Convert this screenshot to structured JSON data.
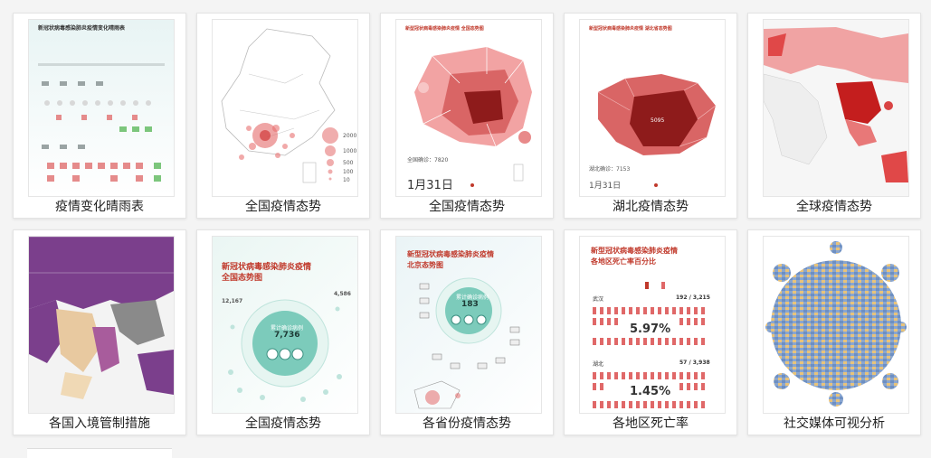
{
  "cards": [
    {
      "caption": "疫情变化晴雨表",
      "thumb": {
        "title": "新冠状病毒感染肺炎疫情变化晴雨表"
      }
    },
    {
      "caption": "全国疫情态势",
      "thumb": {
        "legend": [
          "2000",
          "1000",
          "500",
          "100",
          "10"
        ]
      }
    },
    {
      "caption": "全国疫情态势",
      "thumb": {
        "title": "新型冠状病毒感染肺炎疫情 全国态势图",
        "total": "全国确诊：7820",
        "date": "1月31日"
      }
    },
    {
      "caption": "湖北疫情态势",
      "thumb": {
        "title": "新型冠状病毒感染肺炎疫情 湖北省态势图",
        "total": "湖北确诊：7153",
        "date": "1月31日",
        "center": "5095"
      }
    },
    {
      "caption": "全球疫情态势",
      "thumb": {}
    },
    {
      "caption": "各国入境管制措施",
      "thumb": {}
    },
    {
      "caption": "全国疫情态势",
      "thumb": {
        "title1": "新冠状病毒感染肺炎疫情",
        "title2": "全国态势图",
        "center_label": "累计确诊病例",
        "center_value": "7,736",
        "side_left": "12,167",
        "side_right": "4,586"
      }
    },
    {
      "caption": "各省份疫情态势",
      "thumb": {
        "title1": "新型冠状病毒感染肺炎疫情",
        "title2": "北京态势图",
        "center_label": "累计确诊病例",
        "center_value": "183"
      }
    },
    {
      "caption": "各地区死亡率",
      "thumb": {
        "title1": "新型冠状病毒感染肺炎疫情",
        "title2": "各地区死亡率百分比",
        "region1": "武汉",
        "rate1": "5.97%",
        "count1": "192 / 3,215",
        "region2": "湖北",
        "rate2": "1.45%",
        "count2": "57 / 3,938"
      }
    },
    {
      "caption": "社交媒体可视分析",
      "thumb": {}
    }
  ],
  "colors": {
    "accent": "#c0392b",
    "dark_red": "#8e1b1b",
    "pink": "#f2a3a3",
    "purple": "#7b3f8c",
    "teal": "#7ccbbb"
  }
}
